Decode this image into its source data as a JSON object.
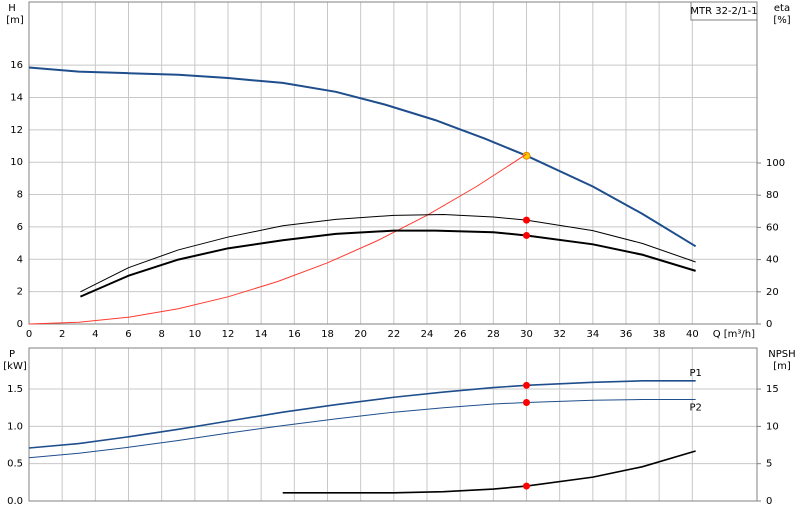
{
  "chart_data": [
    {
      "type": "line",
      "title": "MTR 32-2/1-1",
      "ylabel": "H",
      "yunit": "[m]",
      "y2label": "eta",
      "y2unit": "[%]",
      "xlabel": "Q [m³/h]",
      "xlim": [
        0,
        43.9
      ],
      "xticks": [
        0,
        2,
        4,
        6,
        8,
        10,
        12,
        14,
        16,
        18,
        20,
        22,
        24,
        26,
        28,
        30,
        32,
        34,
        36,
        38,
        40
      ],
      "ylim": [
        0,
        19.9
      ],
      "yticks": [
        0,
        2,
        4,
        6,
        8,
        10,
        12,
        14,
        16
      ],
      "y2lim": [
        0,
        200
      ],
      "y2ticks": [
        0,
        20,
        40,
        60,
        80,
        100
      ],
      "grid": true,
      "operating_point": 30,
      "series": [
        {
          "color": "#1f4e8c",
          "line_width": 2,
          "point_color": "#ffcc00",
          "x": [
            0,
            3,
            6,
            9,
            12,
            15.3,
            18.5,
            21.5,
            24.5,
            27.5,
            30,
            34,
            37,
            40.2
          ],
          "values": [
            15.85,
            15.6,
            15.5,
            15.4,
            15.2,
            14.9,
            14.35,
            13.55,
            12.6,
            11.45,
            10.4,
            8.5,
            6.8,
            4.8
          ]
        },
        {
          "color": "#ff3b30",
          "line_width": 1,
          "x": [
            0,
            3,
            6,
            9,
            12,
            15,
            18,
            21,
            24,
            27,
            30
          ],
          "values": [
            0,
            0.105,
            0.42,
            0.945,
            1.68,
            2.625,
            3.78,
            5.145,
            6.72,
            8.505,
            10.5
          ]
        },
        {
          "color": "#000000",
          "line_width": 1,
          "axis": "y2",
          "point_color": "#ff0000",
          "x": [
            3.1,
            6,
            9,
            12,
            15.3,
            18.5,
            22,
            25,
            28,
            30,
            34,
            37,
            40.2
          ],
          "values": [
            20,
            35,
            46,
            54,
            61,
            65,
            67.5,
            68,
            66.5,
            64.5,
            58,
            50,
            38.5
          ]
        },
        {
          "color": "#000000",
          "line_width": 2,
          "axis": "y2",
          "point_color": "#ff0000",
          "x": [
            3.1,
            6,
            9,
            12,
            15.3,
            18.5,
            22,
            24.5,
            28,
            30,
            34,
            37,
            40.2
          ],
          "values": [
            17,
            30,
            40,
            47,
            52,
            56,
            58,
            58,
            57,
            55,
            49.5,
            43,
            33
          ]
        }
      ]
    },
    {
      "type": "line",
      "ylabel": "P",
      "yunit": "[kW]",
      "y2label": "NPSH",
      "y2unit": "[m]",
      "xlim": [
        0,
        43.9
      ],
      "xticks": [
        0,
        2,
        4,
        6,
        8,
        10,
        12,
        14,
        16,
        18,
        20,
        22,
        24,
        26,
        28,
        30,
        32,
        34,
        36,
        38,
        40
      ],
      "ylim": [
        0,
        2.05
      ],
      "yticks": [
        {
          "value": 0,
          "label": "0.0"
        },
        0.5,
        {
          "value": 1,
          "label": "1.0"
        },
        1.5
      ],
      "y2lim": [
        0,
        20.5
      ],
      "y2ticks": [
        0,
        5,
        10,
        15
      ],
      "grid": true,
      "operating_point": 30,
      "series": [
        {
          "name": "P1",
          "color": "#1f4e8c",
          "line_width": 1.6,
          "point_color": "#ff0000",
          "x": [
            0,
            3,
            6,
            9,
            12,
            15.3,
            18.5,
            22,
            25,
            28,
            30,
            34,
            37,
            40.2
          ],
          "values": [
            0.71,
            0.77,
            0.86,
            0.96,
            1.07,
            1.19,
            1.29,
            1.39,
            1.46,
            1.52,
            1.55,
            1.59,
            1.61,
            1.61
          ]
        },
        {
          "name": "P2",
          "color": "#1f4e8c",
          "line_width": 1,
          "point_color": "#ff0000",
          "x": [
            0,
            3,
            6,
            9,
            12,
            15.3,
            18.5,
            22,
            25,
            28,
            30,
            34,
            37,
            40.2
          ],
          "values": [
            0.58,
            0.64,
            0.72,
            0.81,
            0.91,
            1.01,
            1.1,
            1.19,
            1.25,
            1.3,
            1.32,
            1.35,
            1.36,
            1.36
          ]
        },
        {
          "color": "#000000",
          "line_width": 1.6,
          "axis": "y2",
          "point_color": "#ff0000",
          "x": [
            15.3,
            18.5,
            22,
            25,
            28,
            30,
            34,
            37,
            40.2
          ],
          "values": [
            1.1,
            1.1,
            1.1,
            1.25,
            1.6,
            2.0,
            3.2,
            4.6,
            6.7
          ]
        }
      ]
    }
  ]
}
